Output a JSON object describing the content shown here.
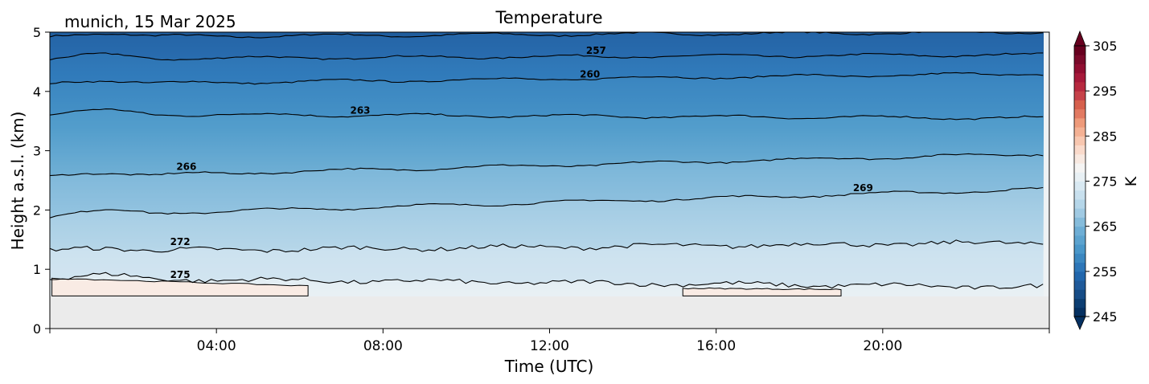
{
  "chart_data": {
    "type": "heatmap",
    "title": "Temperature",
    "subtitle": "munich, 15 Mar 2025",
    "xlabel": "Time (UTC)",
    "ylabel": "Height a.s.l. (km)",
    "x_ticks": [
      "04:00",
      "08:00",
      "12:00",
      "16:00",
      "20:00"
    ],
    "x_tick_hours": [
      4,
      8,
      12,
      16,
      20
    ],
    "xlim_hours": [
      0,
      24
    ],
    "y_ticks": [
      "0",
      "1",
      "2",
      "3",
      "4",
      "5"
    ],
    "ylim": [
      0,
      5
    ],
    "ground_height_km": 0.55,
    "ground_color": "#ebebeb",
    "colorbar": {
      "label": "K",
      "ticks": [
        "245",
        "255",
        "265",
        "275",
        "285",
        "295",
        "305"
      ],
      "range": [
        245,
        305
      ],
      "step": 2,
      "extend": "both",
      "colors": [
        "#053061",
        "#0c3e72",
        "#164c86",
        "#1f5a9a",
        "#2166ac",
        "#2d76b8",
        "#3b87c0",
        "#4a97c9",
        "#5ca3cf",
        "#6eaed5",
        "#86bcdb",
        "#a0cae3",
        "#b5d6e9",
        "#c8e0ee",
        "#d9e9f2",
        "#e8f0f4",
        "#f5f4f3",
        "#f8e9e1",
        "#fadacb",
        "#f8c7b0",
        "#f4b194",
        "#ee9a7a",
        "#e27a62",
        "#d6604d",
        "#c6424a",
        "#b7293f",
        "#a6193a",
        "#900e31",
        "#7a0a2a",
        "#67001f"
      ]
    },
    "contour_levels": [
      {
        "level": 254,
        "label": "",
        "h_start": 4.92,
        "h_end": 5.0
      },
      {
        "level": 257,
        "label": "257",
        "h_start": 4.55,
        "h_end": 4.62
      },
      {
        "level": 260,
        "label": "260",
        "h_start": 4.12,
        "h_end": 4.3
      },
      {
        "level": 263,
        "label": "263",
        "h_start": 3.62,
        "h_end": 3.55
      },
      {
        "level": 266,
        "label": "266",
        "h_start": 2.55,
        "h_end": 2.95
      },
      {
        "level": 269,
        "label": "269",
        "h_start": 1.9,
        "h_end": 2.35
      },
      {
        "level": 272,
        "label": "272",
        "h_start": 1.3,
        "h_end": 1.45
      },
      {
        "level": 275,
        "label": "275",
        "h_start": 0.85,
        "h_end": 0.7
      }
    ],
    "label_positions_hours": {
      "257": 13.1,
      "260": 12.9,
      "263": 7.4,
      "266": 3.3,
      "269": 19.6,
      "272": 3.2,
      "275": 3.1
    }
  }
}
